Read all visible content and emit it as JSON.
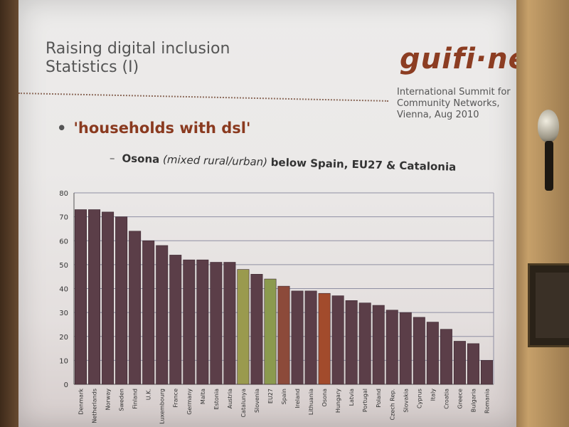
{
  "slide": {
    "title_line1": "Raising digital inclusion",
    "title_line2": "Statistics (I)",
    "logo": "guifi·net",
    "summit": [
      "International Summit for",
      "Community Networks,",
      "Vienna, Aug 2010"
    ],
    "bullet": "'households with dsl'",
    "subbullet": {
      "lead": "Osona",
      "italic": "(mixed rural/urban)",
      "rest": "below Spain, EU27 & Catalonia"
    }
  },
  "chart_data": {
    "type": "bar",
    "title": "",
    "xlabel": "",
    "ylabel": "",
    "ylim": [
      0,
      80
    ],
    "yticks": [
      0,
      10,
      20,
      30,
      40,
      50,
      60,
      70,
      80
    ],
    "grid": true,
    "categories": [
      "Denmark",
      "Netherlands",
      "Norway",
      "Sweden",
      "Finland",
      "U.K.",
      "Luxembourg",
      "France",
      "Germany",
      "Malta",
      "Estonia",
      "Austria",
      "Catalunya",
      "Slovenia",
      "EU27",
      "Spain",
      "Ireland",
      "Lithuania",
      "Osona",
      "Hungary",
      "Latvia",
      "Portugal",
      "Poland",
      "Czech Rep.",
      "Slovakia",
      "Cyprus",
      "Italy",
      "Croatia",
      "Greece",
      "Bulgaria",
      "Romania"
    ],
    "values": [
      73,
      73,
      72,
      70,
      64,
      60,
      58,
      54,
      52,
      52,
      51,
      51,
      48,
      46,
      44,
      41,
      39,
      39,
      38,
      37,
      35,
      34,
      33,
      31,
      30,
      28,
      26,
      23,
      18,
      17,
      10
    ],
    "colors": {
      "default": "#5b3e48",
      "Catalunya": "#9a9a4e",
      "EU27": "#8b9a4e",
      "Spain": "#8c4a3a",
      "Osona": "#a24b2c",
      "grid": "#8f8fa3",
      "axis": "#555555",
      "tick_label": "#333333"
    }
  }
}
